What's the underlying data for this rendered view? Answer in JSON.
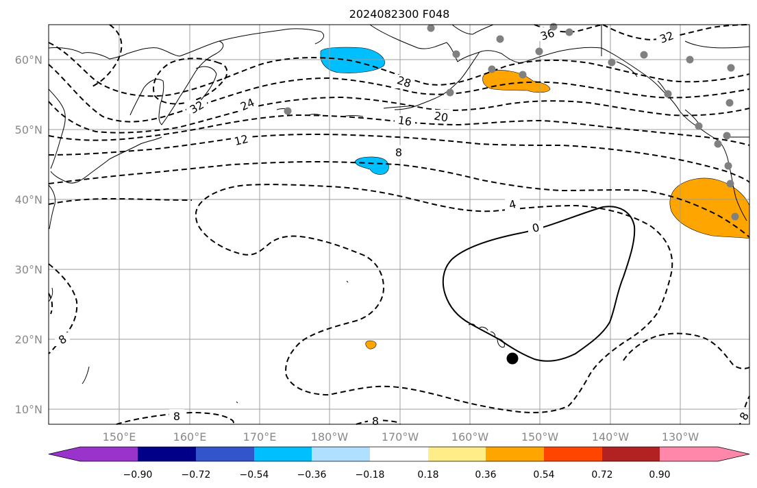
{
  "title": "2024082300 F048",
  "lon_ticks": [
    "150°E",
    "160°E",
    "170°E",
    "180°W",
    "170°W",
    "160°W",
    "150°W",
    "140°W",
    "130°W"
  ],
  "lat_ticks": [
    "60°N",
    "50°N",
    "40°N",
    "30°N",
    "20°N",
    "10°N"
  ],
  "contour_labels": [
    "36",
    "32",
    "32",
    "28",
    "24",
    "20",
    "16",
    "12",
    "8",
    "8",
    "8",
    "8",
    "4",
    "0",
    "8"
  ],
  "colorbar": {
    "ticks": [
      "−0.90",
      "−0.72",
      "−0.54",
      "−0.36",
      "−0.18",
      "0.18",
      "0.36",
      "0.54",
      "0.72",
      "0.90"
    ],
    "colors": [
      "#9933cc",
      "#000088",
      "#3355cc",
      "#00bfff",
      "#b0e0ff",
      "#ffffff",
      "#ffee88",
      "#ffa500",
      "#ff4500",
      "#b22222",
      "#ff88aa"
    ]
  },
  "colors": {
    "negative_blue": "#00bfff",
    "positive_orange": "#ffa500",
    "station_gray": "#808080",
    "grid_gray": "#9e9e9e"
  }
}
